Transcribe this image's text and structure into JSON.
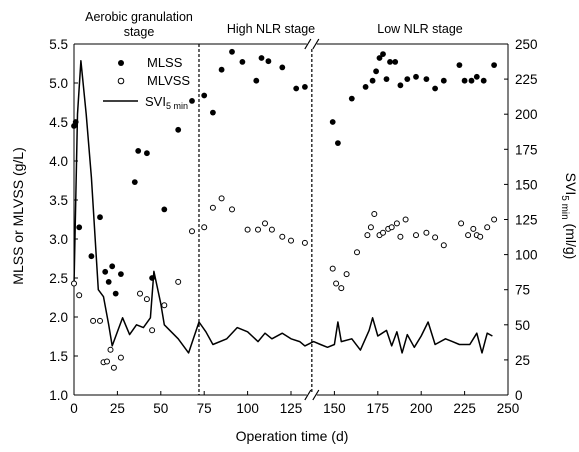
{
  "chart_data": {
    "type": "scatter",
    "xlabel": "Operation time (d)",
    "ylabel_left": "MLSS or MLVSS (g/L)",
    "ylabel_right": {
      "base": "SVI",
      "sub": "5 min",
      "unit": " (ml/g)"
    },
    "x_ticks": [
      "0",
      "25",
      "50",
      "75",
      "100",
      "125",
      "150",
      "175",
      "200",
      "225",
      "250"
    ],
    "y_left_ticks": [
      "1.0",
      "1.5",
      "2.0",
      "2.5",
      "3.0",
      "3.5",
      "4.0",
      "4.5",
      "5.0",
      "5.5"
    ],
    "y_right_ticks": [
      "0",
      "25",
      "50",
      "75",
      "100",
      "125",
      "150",
      "175",
      "200",
      "225",
      "250"
    ],
    "ylim_left": [
      1.0,
      5.5
    ],
    "ylim_right": [
      0,
      250
    ],
    "axis_break": "between 125 and 150",
    "stages": [
      {
        "label": "Aerobic granulation",
        "label2": "stage"
      },
      {
        "label": "High NLR stage"
      },
      {
        "label": "Low NLR stage"
      }
    ],
    "stage_boundaries": [
      72,
      137
    ],
    "legend": {
      "items": [
        {
          "name": "MLSS",
          "marker": "filled-circle"
        },
        {
          "name": "MLVSS",
          "marker": "open-circle"
        },
        {
          "name": "SVI",
          "sub": "5 min",
          "marker": "line"
        }
      ]
    },
    "series": [
      {
        "name": "MLSS",
        "axis": "left",
        "marker": "filled-circle",
        "points": [
          [
            0,
            4.45
          ],
          [
            1,
            4.5
          ],
          [
            3,
            3.15
          ],
          [
            10,
            2.78
          ],
          [
            15,
            3.28
          ],
          [
            18,
            2.58
          ],
          [
            20,
            2.45
          ],
          [
            22,
            2.65
          ],
          [
            24,
            2.3
          ],
          [
            27,
            2.55
          ],
          [
            35,
            3.73
          ],
          [
            37,
            4.13
          ],
          [
            42,
            4.1
          ],
          [
            45,
            2.5
          ],
          [
            52,
            3.38
          ],
          [
            60,
            4.4
          ],
          [
            68,
            4.77
          ],
          [
            75,
            4.84
          ],
          [
            80,
            4.62
          ],
          [
            85,
            5.17
          ],
          [
            91,
            5.4
          ],
          [
            97,
            5.27
          ],
          [
            105,
            5.03
          ],
          [
            108,
            5.32
          ],
          [
            112,
            5.28
          ],
          [
            120,
            5.2
          ],
          [
            128,
            4.93
          ],
          [
            133,
            4.95
          ],
          [
            149,
            4.5
          ],
          [
            152,
            4.23
          ],
          [
            160,
            4.8
          ],
          [
            168,
            4.95
          ],
          [
            172,
            5.03
          ],
          [
            174,
            5.15
          ],
          [
            176,
            5.32
          ],
          [
            178,
            5.37
          ],
          [
            180,
            5.05
          ],
          [
            182,
            5.27
          ],
          [
            185,
            5.27
          ],
          [
            188,
            4.97
          ],
          [
            192,
            5.05
          ],
          [
            197,
            5.08
          ],
          [
            203,
            5.05
          ],
          [
            208,
            4.93
          ],
          [
            213,
            5.03
          ],
          [
            222,
            5.23
          ],
          [
            225,
            5.03
          ],
          [
            229,
            5.03
          ],
          [
            232,
            5.08
          ],
          [
            236,
            5.03
          ],
          [
            242,
            5.23
          ]
        ]
      },
      {
        "name": "MLVSS",
        "axis": "left",
        "marker": "open-circle",
        "points": [
          [
            0,
            2.43
          ],
          [
            3,
            2.28
          ],
          [
            11,
            1.95
          ],
          [
            15,
            1.95
          ],
          [
            17,
            1.42
          ],
          [
            19,
            1.43
          ],
          [
            21,
            1.58
          ],
          [
            23,
            1.35
          ],
          [
            27,
            1.48
          ],
          [
            38,
            2.3
          ],
          [
            42,
            2.23
          ],
          [
            45,
            1.83
          ],
          [
            52,
            2.15
          ],
          [
            60,
            2.45
          ],
          [
            68,
            3.1
          ],
          [
            75,
            3.15
          ],
          [
            80,
            3.4
          ],
          [
            85,
            3.52
          ],
          [
            91,
            3.38
          ],
          [
            100,
            3.12
          ],
          [
            106,
            3.12
          ],
          [
            110,
            3.2
          ],
          [
            114,
            3.12
          ],
          [
            120,
            3.03
          ],
          [
            125,
            2.98
          ],
          [
            133,
            2.95
          ],
          [
            149,
            2.62
          ],
          [
            151,
            2.43
          ],
          [
            154,
            2.37
          ],
          [
            157,
            2.55
          ],
          [
            163,
            2.83
          ],
          [
            169,
            3.05
          ],
          [
            171,
            3.15
          ],
          [
            173,
            3.32
          ],
          [
            176,
            3.05
          ],
          [
            178,
            3.08
          ],
          [
            181,
            3.13
          ],
          [
            183,
            3.15
          ],
          [
            186,
            3.2
          ],
          [
            188,
            3.03
          ],
          [
            191,
            3.25
          ],
          [
            197,
            3.05
          ],
          [
            203,
            3.08
          ],
          [
            208,
            3.02
          ],
          [
            213,
            2.92
          ],
          [
            223,
            3.2
          ],
          [
            227,
            3.05
          ],
          [
            230,
            3.13
          ],
          [
            232,
            3.05
          ],
          [
            234,
            3.03
          ],
          [
            238,
            3.15
          ],
          [
            242,
            3.25
          ]
        ]
      },
      {
        "name": "SVI5min",
        "axis": "right",
        "marker": "line",
        "points": [
          [
            0,
            78
          ],
          [
            2,
            200
          ],
          [
            4,
            238
          ],
          [
            7,
            200
          ],
          [
            10,
            155
          ],
          [
            14,
            75
          ],
          [
            17,
            70
          ],
          [
            20,
            50
          ],
          [
            22,
            35
          ],
          [
            25,
            45
          ],
          [
            28,
            55
          ],
          [
            32,
            43
          ],
          [
            36,
            50
          ],
          [
            40,
            48
          ],
          [
            44,
            55
          ],
          [
            46,
            88
          ],
          [
            50,
            65
          ],
          [
            52,
            50
          ],
          [
            60,
            40
          ],
          [
            66,
            30
          ],
          [
            72,
            52
          ],
          [
            76,
            45
          ],
          [
            80,
            36
          ],
          [
            88,
            40
          ],
          [
            94,
            48
          ],
          [
            100,
            45
          ],
          [
            106,
            38
          ],
          [
            110,
            44
          ],
          [
            114,
            40
          ],
          [
            120,
            44
          ],
          [
            125,
            40
          ],
          [
            130,
            38
          ],
          [
            133,
            35
          ],
          [
            138,
            38
          ],
          [
            142,
            36
          ],
          [
            146,
            34
          ],
          [
            150,
            36
          ],
          [
            152,
            52
          ],
          [
            154,
            38
          ],
          [
            160,
            40
          ],
          [
            165,
            32
          ],
          [
            170,
            46
          ],
          [
            172,
            55
          ],
          [
            175,
            42
          ],
          [
            180,
            46
          ],
          [
            183,
            35
          ],
          [
            186,
            45
          ],
          [
            189,
            30
          ],
          [
            192,
            43
          ],
          [
            196,
            34
          ],
          [
            200,
            42
          ],
          [
            204,
            52
          ],
          [
            208,
            36
          ],
          [
            214,
            40
          ],
          [
            218,
            38
          ],
          [
            222,
            36
          ],
          [
            228,
            36
          ],
          [
            232,
            44
          ],
          [
            235,
            30
          ],
          [
            238,
            44
          ],
          [
            241,
            42
          ]
        ]
      }
    ]
  }
}
